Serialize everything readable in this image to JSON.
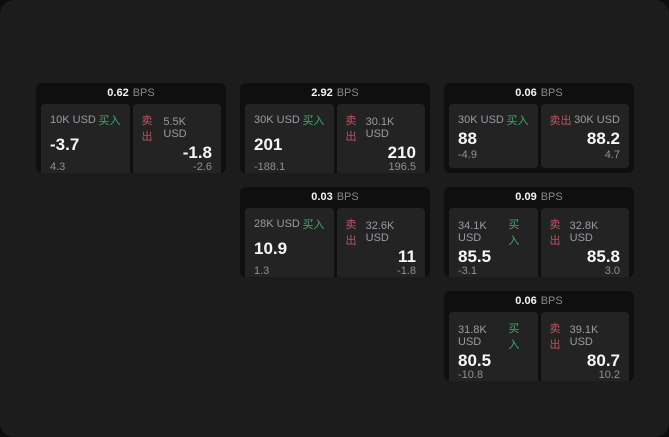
{
  "labels": {
    "bps_unit": "BPS",
    "buy": "买入",
    "sell": "卖出"
  },
  "colors": {
    "buy_green": "#40a971",
    "sell_red": "#c05364",
    "window_bg": "#1c1c1d",
    "card_bg": "#0f0f10",
    "panel_bg": "#232324"
  },
  "cards": [
    {
      "bps": "0.62",
      "buy": {
        "amount": "10K USD",
        "value": "-3.7",
        "delta": "4.3"
      },
      "sell": {
        "amount": "5.5K USD",
        "value": "-1.8",
        "delta": "-2.6"
      }
    },
    {
      "bps": "2.92",
      "buy": {
        "amount": "30K USD",
        "value": "201",
        "delta": "-188.1"
      },
      "sell": {
        "amount": "30.1K USD",
        "value": "210",
        "delta": "196.5"
      }
    },
    {
      "bps": "0.06",
      "buy": {
        "amount": "30K USD",
        "value": "88",
        "delta": "-4.9"
      },
      "sell": {
        "amount": "30K USD",
        "value": "88.2",
        "delta": "4.7"
      }
    },
    {
      "bps": "0.03",
      "buy": {
        "amount": "28K USD",
        "value": "10.9",
        "delta": "1.3"
      },
      "sell": {
        "amount": "32.6K USD",
        "value": "11",
        "delta": "-1.8"
      }
    },
    {
      "bps": "0.09",
      "buy": {
        "amount": "34.1K USD",
        "value": "85.5",
        "delta": "-3.1"
      },
      "sell": {
        "amount": "32.8K USD",
        "value": "85.8",
        "delta": "3.0"
      }
    },
    {
      "bps": "0.06",
      "buy": {
        "amount": "31.8K USD",
        "value": "80.5",
        "delta": "-10.8"
      },
      "sell": {
        "amount": "39.1K USD",
        "value": "80.7",
        "delta": "10.2"
      }
    }
  ]
}
